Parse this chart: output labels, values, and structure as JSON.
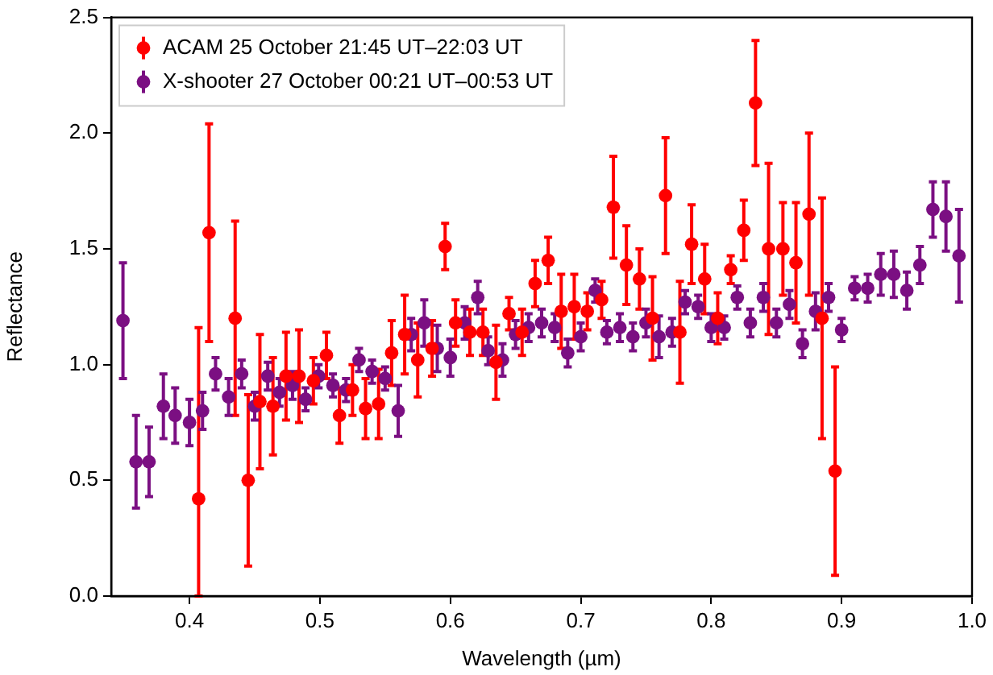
{
  "chart_data": {
    "type": "scatter",
    "xlabel": "Wavelength (µm)",
    "ylabel": "Reflectance",
    "xlim": [
      0.34,
      1.0
    ],
    "xticks": [
      0.4,
      0.5,
      0.6,
      0.7,
      0.8,
      0.9,
      {
        "value": 1,
        "label": "1.0"
      }
    ],
    "ylim": [
      0,
      2.5
    ],
    "yticks": [
      {
        "value": 0,
        "label": "0.0"
      },
      0.5,
      {
        "value": 1,
        "label": "1.0"
      },
      1.5,
      {
        "value": 2,
        "label": "2.0"
      },
      2.5
    ],
    "grid": false,
    "legend": "top left",
    "marker": "circle",
    "series": [
      {
        "name": "ACAM 25 October 21:45 UT–22:03 UT",
        "color": "#ff0000",
        "x": [
          0.407,
          0.415,
          0.435,
          0.445,
          0.454,
          0.464,
          0.474,
          0.484,
          0.495,
          0.505,
          0.515,
          0.525,
          0.535,
          0.545,
          0.555,
          0.565,
          0.575,
          0.586,
          0.596,
          0.604,
          0.615,
          0.625,
          0.635,
          0.645,
          0.655,
          0.665,
          0.675,
          0.685,
          0.695,
          0.705,
          0.716,
          0.725,
          0.735,
          0.745,
          0.755,
          0.765,
          0.776,
          0.785,
          0.795,
          0.805,
          0.815,
          0.825,
          0.834,
          0.844,
          0.855,
          0.865,
          0.875,
          0.885,
          0.895
        ],
        "values": [
          0.42,
          1.57,
          1.2,
          0.5,
          0.84,
          0.82,
          0.95,
          0.95,
          0.93,
          1.04,
          0.78,
          0.89,
          0.81,
          0.83,
          1.05,
          1.13,
          1.02,
          1.07,
          1.51,
          1.18,
          1.14,
          1.14,
          1.01,
          1.22,
          1.14,
          1.35,
          1.45,
          1.23,
          1.25,
          1.23,
          1.28,
          1.68,
          1.43,
          1.37,
          1.2,
          1.73,
          1.14,
          1.52,
          1.37,
          1.2,
          1.41,
          1.58,
          2.13,
          1.5,
          1.5,
          1.44,
          1.65,
          1.2,
          0.54
        ],
        "errors": [
          [
            0,
            1.16
          ],
          0.47,
          0.42,
          0.37,
          0.29,
          0.21,
          0.19,
          0.2,
          0.1,
          0.1,
          0.12,
          0.11,
          0.13,
          0.15,
          0.14,
          0.17,
          0.16,
          0.12,
          0.1,
          0.1,
          0.1,
          0.1,
          0.16,
          0.07,
          0.1,
          0.1,
          0.1,
          0.16,
          0.14,
          0.08,
          0.08,
          0.22,
          0.17,
          0.13,
          0.18,
          0.25,
          0.22,
          0.17,
          0.15,
          0.11,
          0.06,
          0.13,
          0.27,
          0.37,
          0.2,
          0.26,
          0.35,
          0.52,
          0.45
        ]
      },
      {
        "name": "X-shooter 27 October 00:21 UT–00:53 UT",
        "color": "#7b0f82",
        "x": [
          0.349,
          0.359,
          0.369,
          0.38,
          0.389,
          0.4,
          0.41,
          0.42,
          0.43,
          0.44,
          0.45,
          0.46,
          0.469,
          0.479,
          0.489,
          0.499,
          0.51,
          0.52,
          0.53,
          0.54,
          0.55,
          0.56,
          0.57,
          0.58,
          0.59,
          0.6,
          0.611,
          0.621,
          0.629,
          0.64,
          0.65,
          0.66,
          0.67,
          0.68,
          0.69,
          0.7,
          0.711,
          0.72,
          0.73,
          0.74,
          0.75,
          0.76,
          0.77,
          0.78,
          0.79,
          0.8,
          0.81,
          0.82,
          0.83,
          0.84,
          0.85,
          0.86,
          0.87,
          0.88,
          0.89,
          0.9,
          0.91,
          0.92,
          0.93,
          0.94,
          0.95,
          0.96,
          0.97,
          0.98,
          0.99
        ],
        "values": [
          1.19,
          0.58,
          0.58,
          0.82,
          0.78,
          0.75,
          0.8,
          0.96,
          0.86,
          0.96,
          0.82,
          0.95,
          0.88,
          0.91,
          0.85,
          0.95,
          0.91,
          0.89,
          1.02,
          0.97,
          0.94,
          0.8,
          1.13,
          1.18,
          1.07,
          1.03,
          1.18,
          1.29,
          1.06,
          1.02,
          1.13,
          1.16,
          1.18,
          1.16,
          1.05,
          1.12,
          1.32,
          1.14,
          1.16,
          1.12,
          1.18,
          1.12,
          1.14,
          1.27,
          1.25,
          1.16,
          1.16,
          1.29,
          1.18,
          1.29,
          1.18,
          1.26,
          1.09,
          1.23,
          1.29,
          1.15,
          1.33,
          1.33,
          1.39,
          1.39,
          1.32,
          1.43,
          1.67,
          1.64,
          1.47
        ],
        "errors": [
          0.25,
          0.2,
          0.15,
          0.14,
          0.12,
          0.1,
          0.08,
          0.07,
          0.08,
          0.06,
          0.06,
          0.06,
          0.06,
          0.06,
          0.05,
          0.05,
          0.05,
          0.05,
          0.05,
          0.05,
          0.05,
          0.11,
          0.07,
          0.1,
          0.1,
          0.08,
          0.07,
          0.07,
          0.06,
          0.07,
          0.06,
          0.06,
          0.06,
          0.06,
          0.06,
          0.06,
          0.05,
          0.05,
          0.06,
          0.06,
          0.06,
          0.09,
          0.06,
          0.05,
          0.05,
          0.06,
          0.05,
          0.05,
          0.06,
          0.06,
          0.06,
          0.06,
          0.06,
          0.08,
          0.06,
          0.05,
          0.05,
          0.06,
          0.09,
          0.1,
          0.08,
          0.08,
          0.12,
          0.15,
          0.2
        ]
      }
    ]
  }
}
